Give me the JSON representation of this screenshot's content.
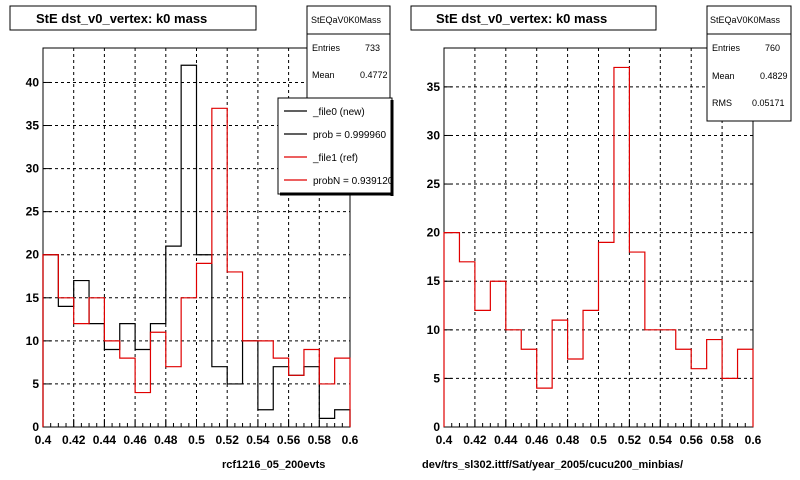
{
  "colors": {
    "black_series": "#000000",
    "red_series": "#e00000",
    "grid": "#000000"
  },
  "chart_data": [
    {
      "type": "histogram",
      "title": "StE dst_v0_vertex: k0 mass",
      "xlim": [
        0.4,
        0.6
      ],
      "ylim": [
        0,
        44
      ],
      "grid": true,
      "x_ticks": [
        "0.4",
        "0.42",
        "0.44",
        "0.46",
        "0.48",
        "0.5",
        "0.52",
        "0.54",
        "0.56",
        "0.58",
        "0.6"
      ],
      "y_ticks": [
        "5",
        "10",
        "15",
        "20",
        "25",
        "30",
        "35",
        "40"
      ],
      "bin_width": 0.01,
      "series": [
        {
          "name": "_file0 (new)",
          "color": "#000000",
          "bins_low": [
            0.4,
            0.41,
            0.42,
            0.43,
            0.44,
            0.45,
            0.46,
            0.47,
            0.48,
            0.49,
            0.5,
            0.51,
            0.52,
            0.53,
            0.54,
            0.55,
            0.56,
            0.57,
            0.58,
            0.59
          ],
          "values": [
            20,
            14,
            17,
            12,
            9,
            12,
            9,
            12,
            21,
            42,
            20,
            7,
            5,
            10,
            2,
            7,
            6,
            7,
            1,
            2
          ]
        },
        {
          "name": "_file1 (ref)",
          "color": "#e00000",
          "bins_low": [
            0.4,
            0.41,
            0.42,
            0.43,
            0.44,
            0.45,
            0.46,
            0.47,
            0.48,
            0.49,
            0.5,
            0.51,
            0.52,
            0.53,
            0.54,
            0.55,
            0.56,
            0.57,
            0.58,
            0.59
          ],
          "values": [
            20,
            15,
            12,
            15,
            10,
            8,
            4,
            11,
            7,
            15,
            19,
            37,
            18,
            10,
            10,
            8,
            6,
            9,
            5,
            8
          ]
        }
      ],
      "stats": {
        "name": "StEQaV0K0Mass",
        "entries_label": "Entries",
        "entries": "733",
        "mean_label": "Mean",
        "mean": "0.4772"
      },
      "legend": [
        {
          "label": "_file0 (new)",
          "color": "#000000"
        },
        {
          "label": "prob = 0.999960",
          "color": "#000000"
        },
        {
          "label": "_file1 (ref)",
          "color": "#e00000"
        },
        {
          "label": "probN = 0.939120",
          "color": "#e00000"
        }
      ],
      "footer": "rcf1216_05_200evts"
    },
    {
      "type": "histogram",
      "title": "StE dst_v0_vertex: k0 mass",
      "xlim": [
        0.4,
        0.6
      ],
      "ylim": [
        0,
        39
      ],
      "grid": true,
      "x_ticks": [
        "0.4",
        "0.42",
        "0.44",
        "0.46",
        "0.48",
        "0.5",
        "0.52",
        "0.54",
        "0.56",
        "0.58",
        "0.6"
      ],
      "y_ticks": [
        "5",
        "10",
        "15",
        "20",
        "25",
        "30",
        "35"
      ],
      "bin_width": 0.01,
      "series": [
        {
          "name": "",
          "color": "#e00000",
          "bins_low": [
            0.4,
            0.41,
            0.42,
            0.43,
            0.44,
            0.45,
            0.46,
            0.47,
            0.48,
            0.49,
            0.5,
            0.51,
            0.52,
            0.53,
            0.54,
            0.55,
            0.56,
            0.57,
            0.58,
            0.59
          ],
          "values": [
            20,
            17,
            12,
            15,
            10,
            8,
            4,
            11,
            7,
            12,
            19,
            37,
            18,
            10,
            10,
            8,
            6,
            9,
            5,
            8
          ]
        }
      ],
      "stats": {
        "name": "StEQaV0K0Mass",
        "entries_label": "Entries",
        "entries": "760",
        "mean_label": "Mean",
        "mean": "0.4829",
        "rms_label": "RMS",
        "rms": "0.05171"
      },
      "footer": "dev/trs_sl302.ittf/Sat/year_2005/cucu200_minbias/"
    }
  ]
}
